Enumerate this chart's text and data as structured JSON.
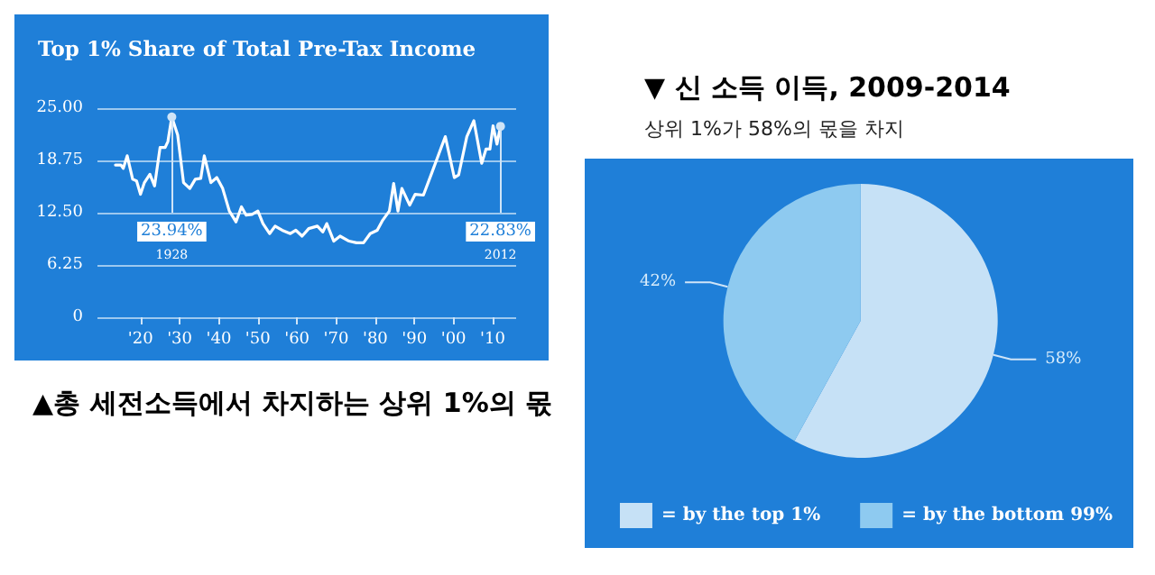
{
  "chart_data": [
    {
      "type": "line",
      "title": "Top 1% Share of Total Pre-Tax Income",
      "x": [
        1913.6,
        1915,
        1915.6,
        1916.6,
        1918,
        1919,
        1920,
        1921,
        1922.4,
        1923.6,
        1925,
        1926.3,
        1927,
        1928,
        1929.5,
        1931,
        1932.6,
        1934,
        1935.4,
        1936.3,
        1938,
        1939.5,
        1941,
        1942.7,
        1944.4,
        1945.8,
        1947,
        1948.5,
        1950,
        1951.3,
        1953,
        1954.4,
        1956.2,
        1958.3,
        1959.7,
        1961.3,
        1963,
        1965.2,
        1966.6,
        1967.6,
        1969.4,
        1971,
        1973.3,
        1975.2,
        1977,
        1978.7,
        1980.5,
        1981.9,
        1983.6,
        1984.7,
        1985.8,
        1986.8,
        1988.8,
        1990.2,
        1992.3,
        1994.4,
        1997.9,
        2000.2,
        2001.3,
        2003.4,
        2005.2,
        2007.2,
        2008.3,
        2009.3,
        2010.1,
        2011.1,
        2012
      ],
      "values": [
        18.2,
        18.2,
        17.8,
        19.3,
        16.5,
        16.3,
        14.7,
        16.1,
        17.1,
        15.7,
        20.3,
        20.3,
        21.0,
        23.94,
        21.8,
        16.1,
        15.4,
        16.5,
        16.6,
        19.3,
        16.1,
        16.7,
        15.4,
        12.7,
        11.4,
        13.2,
        12.2,
        12.3,
        12.7,
        11.2,
        10.0,
        10.9,
        10.4,
        10.0,
        10.4,
        9.7,
        10.6,
        10.9,
        10.2,
        11.2,
        9.1,
        9.7,
        9.1,
        8.9,
        8.9,
        10.0,
        10.4,
        11.6,
        12.7,
        16.0,
        12.7,
        15.4,
        13.4,
        14.7,
        14.6,
        17.2,
        21.6,
        16.7,
        17.0,
        21.6,
        23.5,
        18.4,
        20.1,
        20.1,
        22.9,
        20.7,
        22.83
      ],
      "color": "#ffffff",
      "marker": "none",
      "line_style": "solid",
      "xlim": [
        1909,
        2016
      ],
      "xticks": [
        {
          "value": 1920,
          "label": "'20"
        },
        {
          "value": 1930,
          "label": "'30"
        },
        {
          "value": 1940,
          "label": "'40"
        },
        {
          "value": 1950,
          "label": "'50"
        },
        {
          "value": 1960,
          "label": "'60"
        },
        {
          "value": 1970,
          "label": "'70"
        },
        {
          "value": 1980,
          "label": "'80"
        },
        {
          "value": 1990,
          "label": "'90"
        },
        {
          "value": 2000,
          "label": "'00"
        },
        {
          "value": 2010,
          "label": "'10"
        }
      ],
      "ylim": [
        0,
        25
      ],
      "yticks": [
        0,
        6.25,
        {
          "value": 12.5,
          "label": "12.50"
        },
        18.75,
        {
          "value": 25,
          "label": "25.00"
        }
      ],
      "grid": "y",
      "annotations": [
        {
          "text": "23.94%",
          "x": 1928,
          "y": 23.94
        },
        "1928",
        {
          "text": "22.83%",
          "x": 2012,
          "y": 22.83
        },
        "2012",
        "▲총 세전소득에서 차지하는 상위 1%의 몫"
      ]
    },
    {
      "type": "pie",
      "title": "▼ 신 소득 이득, 2009-2014",
      "subtitle": "상위 1%가 58%의 몫을 차지",
      "categories": [
        "= by the top 1%",
        "= by the bottom 99%"
      ],
      "values": [
        58,
        42
      ],
      "colors": [
        "#c6e1f6",
        "#8ecaf0"
      ],
      "value_labels": [
        "58%",
        "42%"
      ],
      "legend": "bottom"
    }
  ]
}
